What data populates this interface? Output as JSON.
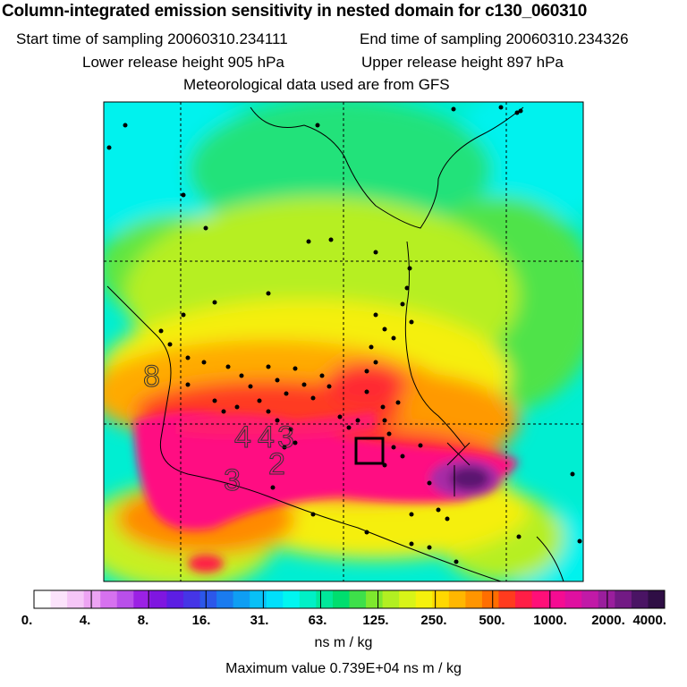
{
  "header": {
    "title": "Column-integrated emission sensitivity in nested domain for c130_060310",
    "start_label": "Start time of sampling 20060310.234111",
    "end_label": "End time of sampling 20060310.234326",
    "lower_label": "Lower release height  905 hPa",
    "upper_label": "Upper release height  897 hPa",
    "met_label": "Meteorological data used are from GFS"
  },
  "colorbar": {
    "colors": [
      "#ffffff",
      "#fbe3fb",
      "#f5c6f7",
      "#eda4f3",
      "#d671ef",
      "#b94fea",
      "#9b21e4",
      "#7f16e0",
      "#5c1ee3",
      "#4535e6",
      "#2c57ea",
      "#1a7bef",
      "#0f9ef3",
      "#08c0f6",
      "#00e0fb",
      "#00f6f0",
      "#00f0c6",
      "#00e89a",
      "#00de6e",
      "#3ee04a",
      "#7ee82e",
      "#b2ef22",
      "#d8f418",
      "#f5f10c",
      "#ffd800",
      "#ffb700",
      "#ff9500",
      "#ff6e00",
      "#ff3b1e",
      "#ff1e46",
      "#ff0f78",
      "#f50c92",
      "#df10a0",
      "#c11aa7",
      "#9a1e9d",
      "#721a84",
      "#4a1464",
      "#2f0e45"
    ],
    "tick_labels": [
      "0.",
      "4.",
      "8.",
      "16.",
      "31.",
      "63.",
      "125.",
      "250.",
      "500.",
      "1000.",
      "2000.",
      "4000."
    ],
    "units": "ns m / kg"
  },
  "footer": {
    "max_value": "Maximum value  0.739E+04 ns m / kg"
  },
  "contour_labels": [
    "8",
    "4",
    "2",
    "3",
    "4",
    "3"
  ],
  "chart_data": {
    "type": "heatmap",
    "title": "Column-integrated emission sensitivity in nested domain for c130_060310",
    "subtitle": "Start time of sampling 20060310.234111 End time of sampling 20060310.234326",
    "colorbar_label": "ns m / kg",
    "colorbar_ticks": [
      0,
      4,
      8,
      16,
      31,
      63,
      125,
      250,
      500,
      1000,
      2000,
      4000
    ],
    "max_value": 7390,
    "max_value_text": "0.739E+04",
    "grid": true
  }
}
